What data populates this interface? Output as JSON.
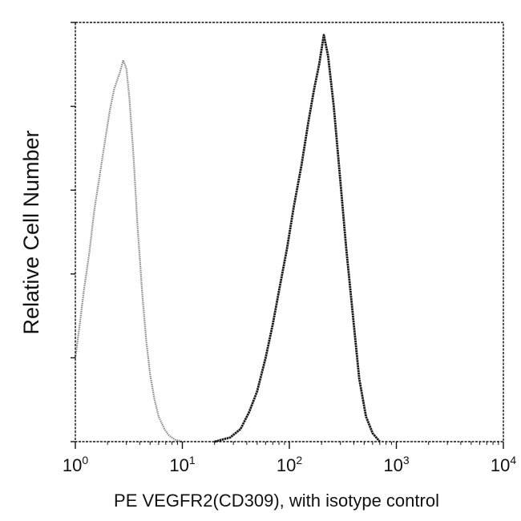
{
  "chart_data": {
    "type": "area",
    "title": "",
    "xlabel": "PE VEGFR2(CD309), with isotype control",
    "ylabel": "Relative Cell Number",
    "x_scale": "log",
    "xlim": [
      1,
      10000
    ],
    "ylim": [
      0,
      100
    ],
    "grid": false,
    "legend": "none",
    "x_ticks": [
      {
        "base": "10",
        "exp": "0"
      },
      {
        "base": "10",
        "exp": "1"
      },
      {
        "base": "10",
        "exp": "2"
      },
      {
        "base": "10",
        "exp": "3"
      },
      {
        "base": "10",
        "exp": "4"
      }
    ],
    "y_ticks": [
      0,
      20,
      40,
      60,
      80,
      100
    ],
    "series": [
      {
        "color": "#8a8a8a",
        "x": [
          1.0,
          1.1,
          1.2,
          1.35,
          1.5,
          1.7,
          1.9,
          2.1,
          2.3,
          2.6,
          2.8,
          3.0,
          3.2,
          3.5,
          3.8,
          4.2,
          4.6,
          5.0,
          5.5,
          6.0,
          6.8,
          7.5,
          8.5,
          10
        ],
        "y": [
          20,
          28,
          36,
          45,
          55,
          64,
          72,
          79,
          84,
          88,
          91,
          89,
          82,
          68,
          52,
          36,
          24,
          16,
          10,
          6,
          3,
          1.5,
          0.5,
          0
        ]
      },
      {
        "color": "#1a1a1a",
        "x": [
          20,
          28,
          35,
          42,
          50,
          60,
          70,
          80,
          95,
          110,
          130,
          150,
          170,
          190,
          210,
          230,
          260,
          300,
          340,
          400,
          450,
          520,
          600,
          700
        ],
        "y": [
          0,
          1,
          3,
          7,
          12,
          20,
          28,
          36,
          46,
          56,
          66,
          76,
          84,
          90,
          97,
          92,
          80,
          62,
          46,
          28,
          15,
          6,
          2,
          0
        ]
      }
    ]
  }
}
